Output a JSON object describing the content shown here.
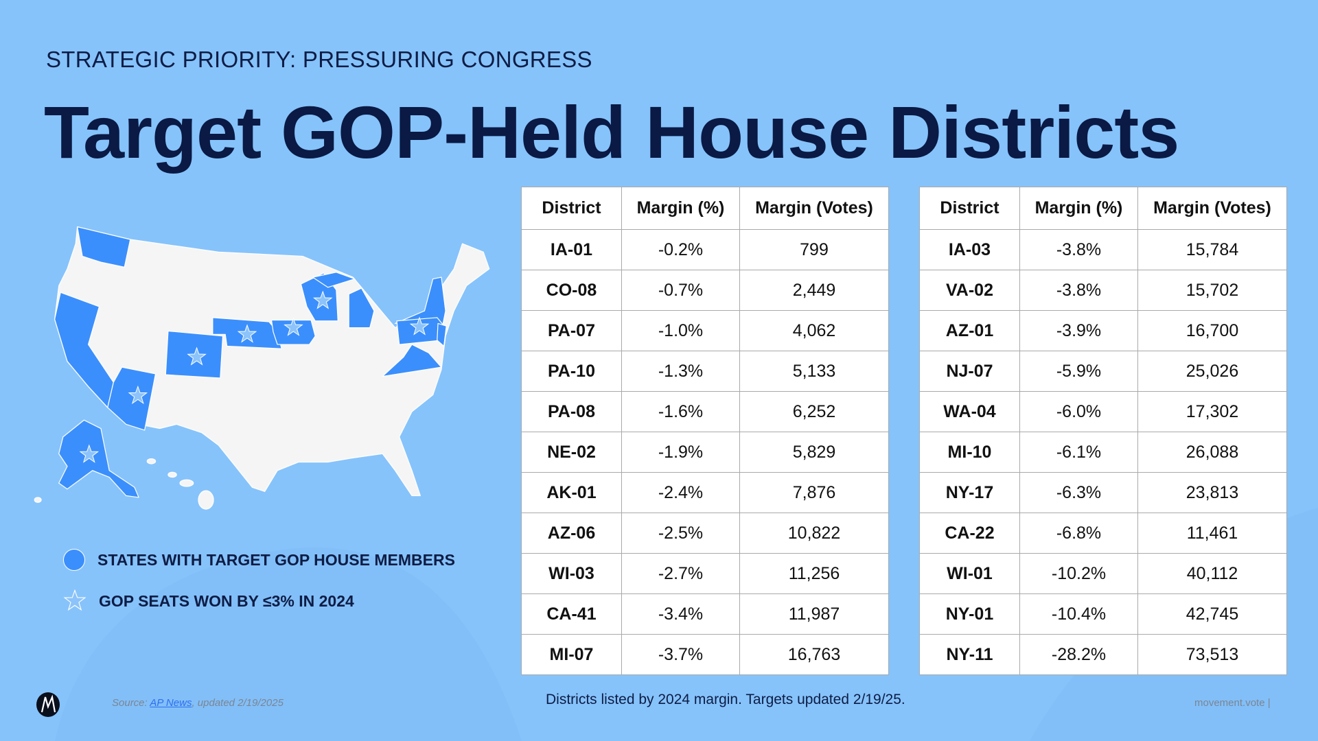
{
  "header": {
    "eyebrow": "STRATEGIC PRIORITY: PRESSURING CONGRESS",
    "title": "Target GOP-Held House Districts"
  },
  "legend": {
    "states_label": "STATES WITH TARGET GOP HOUSE MEMBERS",
    "stars_label": "GOP SEATS WON BY ≤3% IN 2024"
  },
  "colors": {
    "background": "#86c3fb",
    "target_state": "#3b8ffc",
    "other_state": "#f5f5f5",
    "title": "#0a1a44"
  },
  "map": {
    "target_states": [
      "WA",
      "CA",
      "AZ",
      "CO",
      "NE",
      "IA",
      "WI",
      "MI",
      "NY",
      "PA",
      "NJ",
      "VA",
      "AK"
    ],
    "starred_states": [
      "WI",
      "NE",
      "IA",
      "CO",
      "AZ",
      "PA",
      "AK"
    ]
  },
  "tables": {
    "columns": [
      "District",
      "Margin (%)",
      "Margin (Votes)"
    ],
    "left": [
      [
        "IA-01",
        "-0.2%",
        "799"
      ],
      [
        "CO-08",
        "-0.7%",
        "2,449"
      ],
      [
        "PA-07",
        "-1.0%",
        "4,062"
      ],
      [
        "PA-10",
        "-1.3%",
        "5,133"
      ],
      [
        "PA-08",
        "-1.6%",
        "6,252"
      ],
      [
        "NE-02",
        "-1.9%",
        "5,829"
      ],
      [
        "AK-01",
        "-2.4%",
        "7,876"
      ],
      [
        "AZ-06",
        "-2.5%",
        "10,822"
      ],
      [
        "WI-03",
        "-2.7%",
        "11,256"
      ],
      [
        "CA-41",
        "-3.4%",
        "11,987"
      ],
      [
        "MI-07",
        "-3.7%",
        "16,763"
      ]
    ],
    "right": [
      [
        "IA-03",
        "-3.8%",
        "15,784"
      ],
      [
        "VA-02",
        "-3.8%",
        "15,702"
      ],
      [
        "AZ-01",
        "-3.9%",
        "16,700"
      ],
      [
        "NJ-07",
        "-5.9%",
        "25,026"
      ],
      [
        "WA-04",
        "-6.0%",
        "17,302"
      ],
      [
        "MI-10",
        "-6.1%",
        "26,088"
      ],
      [
        "NY-17",
        "-6.3%",
        "23,813"
      ],
      [
        "CA-22",
        "-6.8%",
        "11,461"
      ],
      [
        "WI-01",
        "-10.2%",
        "40,112"
      ],
      [
        "NY-01",
        "-10.4%",
        "42,745"
      ],
      [
        "NY-11",
        "-28.2%",
        "73,513"
      ]
    ]
  },
  "footer": {
    "source_prefix": "Source: ",
    "source_link": "AP News",
    "source_suffix": ", updated 2/19/2025",
    "note": "Districts listed by 2024 margin. Targets updated 2/19/25.",
    "site": "movement.vote  |"
  }
}
